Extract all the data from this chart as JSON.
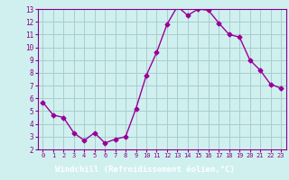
{
  "x": [
    0,
    1,
    2,
    3,
    4,
    5,
    6,
    7,
    8,
    9,
    10,
    11,
    12,
    13,
    14,
    15,
    16,
    17,
    18,
    19,
    20,
    21,
    22,
    23
  ],
  "y": [
    5.7,
    4.7,
    4.5,
    3.3,
    2.7,
    3.3,
    2.5,
    2.8,
    3.0,
    5.2,
    7.8,
    9.6,
    11.8,
    13.2,
    12.5,
    13.0,
    12.9,
    11.9,
    11.0,
    10.8,
    9.0,
    8.2,
    7.1,
    6.8
  ],
  "line_color": "#990099",
  "marker": "D",
  "marker_size": 2.5,
  "bg_color": "#d0f0f0",
  "grid_color": "#aacccc",
  "xlabel": "Windchill (Refroidissement éolien,°C)",
  "xlabel_color": "#ffffff",
  "xlabel_bg": "#880088",
  "xlim": [
    -0.5,
    23.5
  ],
  "ylim": [
    2,
    13
  ],
  "yticks": [
    2,
    3,
    4,
    5,
    6,
    7,
    8,
    9,
    10,
    11,
    12,
    13
  ],
  "xticks": [
    0,
    1,
    2,
    3,
    4,
    5,
    6,
    7,
    8,
    9,
    10,
    11,
    12,
    13,
    14,
    15,
    16,
    17,
    18,
    19,
    20,
    21,
    22,
    23
  ],
  "tick_color": "#880088",
  "spine_color": "#880088",
  "fig_width": 3.2,
  "fig_height": 2.0,
  "dpi": 100
}
